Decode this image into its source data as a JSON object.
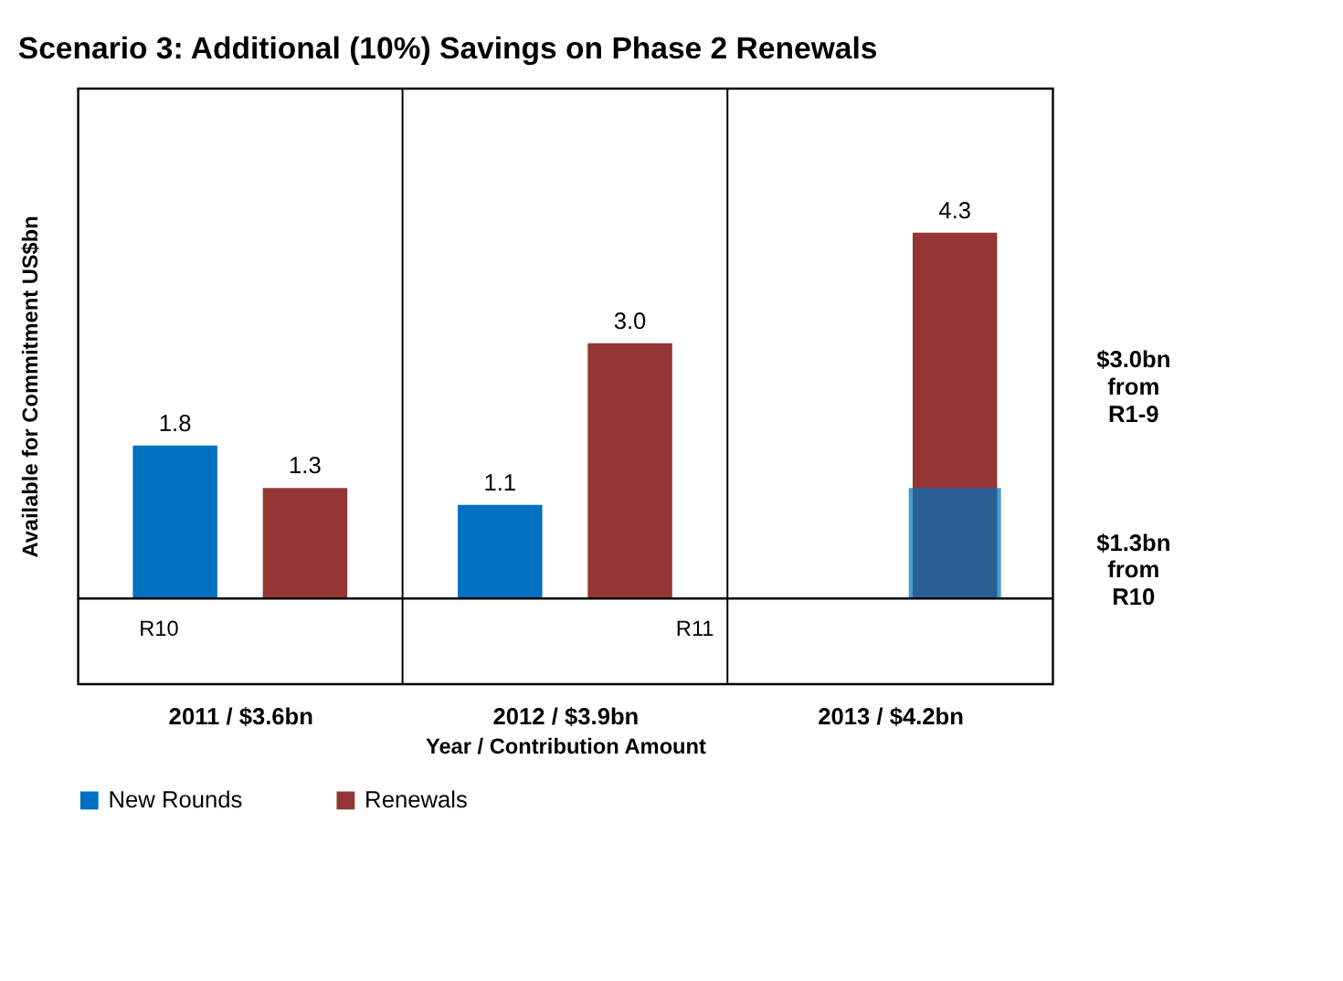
{
  "chart_data": {
    "type": "bar",
    "title": "Scenario 3:  Additional (10%) Savings on Phase 2 Renewals",
    "xlabel": "Year / Contribution Amount",
    "ylabel": "Available for Commitment US$bn",
    "categories": [
      "2011 / $3.6bn",
      "2012 / $3.9bn",
      "2013 / $4.2bn"
    ],
    "series": [
      {
        "name": "New Rounds",
        "color": "#0070c0",
        "values": [
          1.8,
          1.1,
          null
        ],
        "value_labels": [
          "1.8",
          "1.1",
          null
        ]
      },
      {
        "name": "Renewals",
        "color": "#943634",
        "values": [
          1.3,
          3.0,
          4.3
        ],
        "value_labels": [
          "1.3",
          "3.0",
          "4.3"
        ]
      },
      {
        "color": "#0070c0",
        "values": [
          null,
          null,
          1.3
        ]
      }
    ],
    "ylim": [
      -1.0,
      6.0
    ],
    "tick_labels": "x",
    "grid": "x",
    "legend": "bottom",
    "ref_lines": [
      {
        "axis": "y",
        "value": 0
      }
    ],
    "annotations": [
      "R10",
      "R11",
      "$3.0bn\nfrom\nR1-9",
      "$1.3bn\nfrom\nR10"
    ]
  }
}
